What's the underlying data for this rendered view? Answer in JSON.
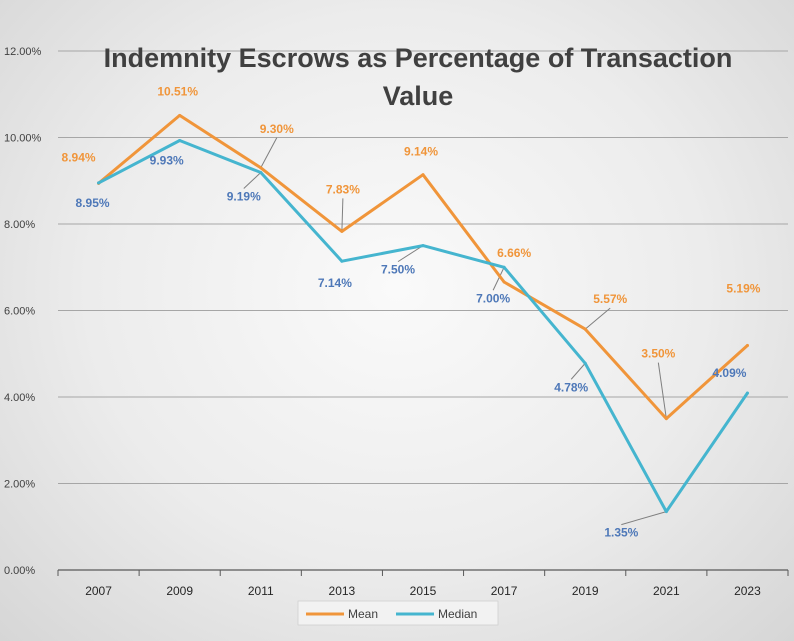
{
  "chart_data": {
    "type": "line",
    "title_lines": [
      "Indemnity Escrows as Percentage of Transaction",
      "Value"
    ],
    "xlabel": "",
    "ylabel": "",
    "categories": [
      "2007",
      "2009",
      "2011",
      "2013",
      "2015",
      "2017",
      "2019",
      "2021",
      "2023"
    ],
    "ylim": [
      0,
      12
    ],
    "yticks": [
      0,
      2,
      4,
      6,
      8,
      10,
      12
    ],
    "ytick_labels": [
      "0.00%",
      "2.00%",
      "4.00%",
      "6.00%",
      "8.00%",
      "10.00%",
      "12.00%"
    ],
    "grid": true,
    "legend_position": "bottom",
    "series": [
      {
        "name": "Mean",
        "color": "#f0953a",
        "values": [
          8.94,
          10.51,
          9.3,
          7.83,
          9.14,
          6.66,
          5.57,
          3.5,
          5.19
        ],
        "labels": [
          "8.94%",
          "10.51%",
          "9.30%",
          "7.83%",
          "9.14%",
          "6.66%",
          "5.57%",
          "3.50%",
          "5.19%"
        ]
      },
      {
        "name": "Median",
        "color": "#45b5cf",
        "label_color": "#4e78b8",
        "values": [
          8.95,
          9.93,
          9.19,
          7.14,
          7.5,
          7.0,
          4.78,
          1.35,
          4.09
        ],
        "labels": [
          "8.95%",
          "9.93%",
          "9.19%",
          "7.14%",
          "7.50%",
          "7.00%",
          "4.78%",
          "1.35%",
          "4.09%"
        ]
      }
    ]
  }
}
